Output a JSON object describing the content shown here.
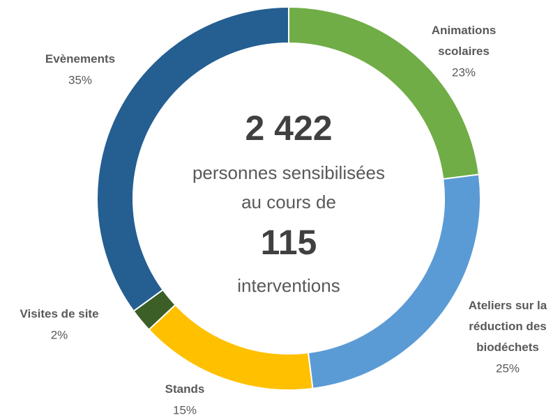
{
  "chart_data": {
    "type": "donut",
    "categories": [
      "Animations scolaires",
      "Ateliers sur la réduction des biodéchets",
      "Stands",
      "Visites de site",
      "Evènements"
    ],
    "values": [
      23,
      25,
      15,
      2,
      35
    ],
    "value_labels": [
      "23%",
      "25%",
      "15%",
      "2%",
      "35%"
    ],
    "colors": [
      "#70ad47",
      "#5b9bd5",
      "#ffc000",
      "#3b5f27",
      "#255e91"
    ],
    "center_text": [
      "2 422",
      "personnes sensibilisées",
      "au cours de",
      "115",
      "interventions"
    ]
  }
}
